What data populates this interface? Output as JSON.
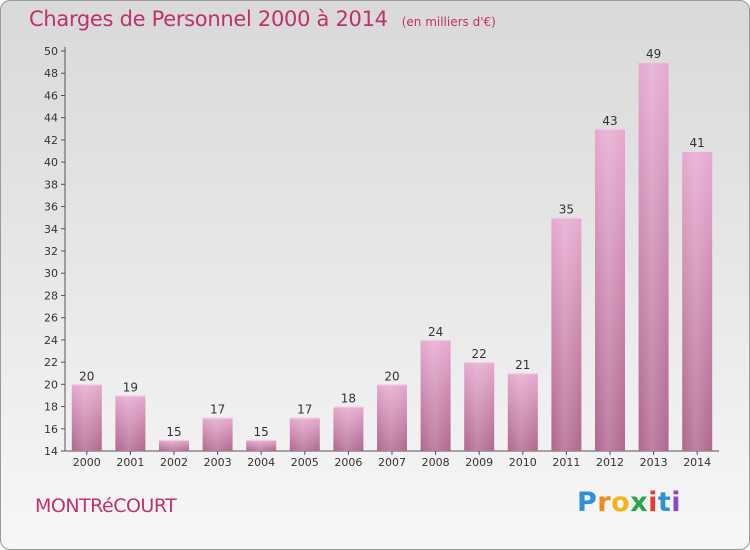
{
  "header": {
    "title": "Charges de Personnel 2000 à 2014",
    "subtitle": "(en milliers d'€)"
  },
  "footer": {
    "town": "MONTRéCOURT",
    "logo": "Proxiti"
  },
  "colors": {
    "accent": "#c0306e",
    "bar_top": "#e6a9cf",
    "bar_bottom": "#b0678f"
  },
  "chart_data": {
    "type": "bar",
    "categories": [
      "2000",
      "2001",
      "2002",
      "2003",
      "2004",
      "2005",
      "2006",
      "2007",
      "2008",
      "2009",
      "2010",
      "2011",
      "2012",
      "2013",
      "2014"
    ],
    "values": [
      20,
      19,
      15,
      17,
      15,
      17,
      18,
      20,
      24,
      22,
      21,
      35,
      43,
      49,
      41
    ],
    "data_labels": [
      "20",
      "19",
      "15",
      "17",
      "15",
      "17",
      "18",
      "20",
      "24",
      "22",
      "21",
      "35",
      "43",
      "49",
      "41"
    ],
    "title": "Charges de Personnel 2000 à 2014",
    "ylim": [
      14,
      50
    ],
    "yticks": [
      14,
      16,
      18,
      20,
      22,
      24,
      26,
      28,
      30,
      32,
      34,
      36,
      38,
      40,
      42,
      44,
      46,
      48,
      50
    ],
    "grid": false,
    "legend": "none"
  }
}
